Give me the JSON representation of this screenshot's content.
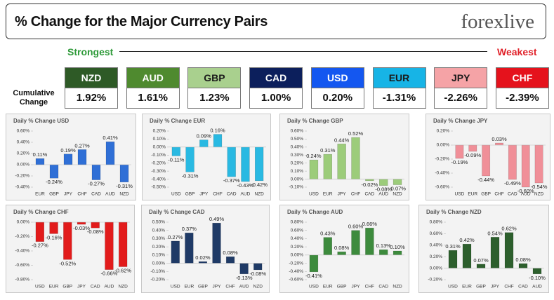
{
  "header": {
    "title": "% Change for the Major Currency Pairs",
    "logo": "forexlive"
  },
  "strength": {
    "strongest": "Strongest",
    "weakest": "Weakest",
    "row_label": "Cumulative Change",
    "currencies": [
      {
        "name": "NZD",
        "change": "1.92%",
        "color": "#2e5a26",
        "text_color": "#ffffff"
      },
      {
        "name": "AUD",
        "change": "1.61%",
        "color": "#4f8a2f",
        "text_color": "#ffffff"
      },
      {
        "name": "GBP",
        "change": "1.23%",
        "color": "#a9d08e",
        "text_color": "#1a1a1a"
      },
      {
        "name": "CAD",
        "change": "1.00%",
        "color": "#0c1f5c",
        "text_color": "#ffffff"
      },
      {
        "name": "USD",
        "change": "0.20%",
        "color": "#1457f0",
        "text_color": "#ffffff"
      },
      {
        "name": "EUR",
        "change": "-1.31%",
        "color": "#17b4e6",
        "text_color": "#1a1a1a"
      },
      {
        "name": "JPY",
        "change": "-2.26%",
        "color": "#f5a3a6",
        "text_color": "#1a1a1a"
      },
      {
        "name": "CHF",
        "change": "-2.39%",
        "color": "#e5121c",
        "text_color": "#ffffff"
      }
    ]
  },
  "chart_data": [
    {
      "type": "bar",
      "title": "Daily % Change USD",
      "color": "#2f6fd6",
      "categories": [
        "EUR",
        "GBP",
        "JPY",
        "CHF",
        "CAD",
        "AUD",
        "NZD"
      ],
      "values": [
        0.11,
        -0.24,
        0.19,
        0.27,
        -0.27,
        0.41,
        -0.31
      ],
      "value_labels": [
        "0.11%",
        "-0.24%",
        "0.19%",
        "0.27%",
        "-0.27%",
        "0.41%",
        "-0.31%"
      ],
      "ylim": [
        -0.4,
        0.6
      ],
      "yticks": [
        {
          "value": -0.4,
          "label": "-0.40%"
        },
        {
          "value": -0.2,
          "label": "-0.20%"
        },
        {
          "value": 0,
          "label": "0.00%"
        },
        {
          "value": 0.2,
          "label": "0.20%"
        },
        {
          "value": 0.4,
          "label": "0.40%"
        },
        {
          "value": 0.6,
          "label": "0.60%"
        }
      ]
    },
    {
      "type": "bar",
      "title": "Daily % Change EUR",
      "color": "#29b9e2",
      "categories": [
        "USD",
        "GBP",
        "JPY",
        "CHF",
        "CAD",
        "AUD",
        "NZD"
      ],
      "values": [
        -0.11,
        -0.31,
        0.09,
        0.16,
        -0.37,
        -0.43,
        -0.42
      ],
      "value_labels": [
        "-0.11%",
        "-0.31%",
        "0.09%",
        "0.16%",
        "-0.37%",
        "-0.43%",
        "-0.42%"
      ],
      "ylim": [
        -0.5,
        0.2
      ],
      "yticks": [
        {
          "value": -0.5,
          "label": "-0.50%"
        },
        {
          "value": -0.4,
          "label": "-0.40%"
        },
        {
          "value": -0.3,
          "label": "-0.30%"
        },
        {
          "value": -0.2,
          "label": "-0.20%"
        },
        {
          "value": -0.1,
          "label": "-0.10%"
        },
        {
          "value": 0,
          "label": "0.00%"
        },
        {
          "value": 0.1,
          "label": "0.10%"
        },
        {
          "value": 0.2,
          "label": "0.20%"
        }
      ]
    },
    {
      "type": "bar",
      "title": "Daily % Change GBP",
      "color": "#9ccc7a",
      "categories": [
        "USD",
        "EUR",
        "JPY",
        "CHF",
        "CAD",
        "AUD",
        "NZD"
      ],
      "values": [
        0.24,
        0.31,
        0.44,
        0.52,
        -0.02,
        -0.08,
        -0.07
      ],
      "value_labels": [
        "0.24%",
        "0.31%",
        "0.44%",
        "0.52%",
        "-0.02%",
        "-0.08%",
        "-0.07%"
      ],
      "ylim": [
        -0.1,
        0.6
      ],
      "yticks": [
        {
          "value": -0.1,
          "label": "-0.10%"
        },
        {
          "value": 0,
          "label": "0.00%"
        },
        {
          "value": 0.1,
          "label": "0.10%"
        },
        {
          "value": 0.2,
          "label": "0.20%"
        },
        {
          "value": 0.3,
          "label": "0.30%"
        },
        {
          "value": 0.4,
          "label": "0.40%"
        },
        {
          "value": 0.5,
          "label": "0.50%"
        },
        {
          "value": 0.6,
          "label": "0.60%"
        }
      ]
    },
    {
      "type": "bar",
      "title": "Daily % Change JPY",
      "color": "#f08f98",
      "categories": [
        "USD",
        "EUR",
        "GBP",
        "CHF",
        "CAD",
        "AUD",
        "NZD"
      ],
      "values": [
        -0.19,
        -0.09,
        -0.44,
        0.03,
        -0.49,
        -0.6,
        -0.54
      ],
      "value_labels": [
        "-0.19%",
        "-0.09%",
        "-0.44%",
        "0.03%",
        "-0.49%",
        "-0.60%",
        "-0.54%"
      ],
      "ylim": [
        -0.6,
        0.2
      ],
      "yticks": [
        {
          "value": -0.6,
          "label": "-0.60%"
        },
        {
          "value": -0.4,
          "label": "-0.40%"
        },
        {
          "value": -0.2,
          "label": "-0.20%"
        },
        {
          "value": 0,
          "label": "0.00%"
        },
        {
          "value": 0.2,
          "label": "0.20%"
        }
      ]
    },
    {
      "type": "bar",
      "title": "Daily % Change CHF",
      "color": "#e21b1b",
      "categories": [
        "USD",
        "EUR",
        "GBP",
        "JPY",
        "CAD",
        "AUD",
        "NZD"
      ],
      "values": [
        -0.27,
        -0.16,
        -0.52,
        -0.03,
        -0.08,
        -0.66,
        -0.62
      ],
      "value_labels": [
        "-0.27%",
        "-0.16%",
        "-0.52%",
        "-0.03%",
        "-0.08%",
        "-0.66%",
        "-0.62%"
      ],
      "ylim": [
        -0.8,
        0
      ],
      "yticks": [
        {
          "value": -0.8,
          "label": "-0.80%"
        },
        {
          "value": -0.6,
          "label": "-0.60%"
        },
        {
          "value": -0.4,
          "label": "-0.40%"
        },
        {
          "value": -0.2,
          "label": "-0.20%"
        },
        {
          "value": 0,
          "label": "0.00%"
        }
      ]
    },
    {
      "type": "bar",
      "title": "Daily % Change CAD",
      "color": "#1f3a66",
      "categories": [
        "USD",
        "EUR",
        "GBP",
        "JPY",
        "CHF",
        "AUD",
        "NZD"
      ],
      "values": [
        0.27,
        0.37,
        0.02,
        0.49,
        0.08,
        -0.13,
        -0.08
      ],
      "value_labels": [
        "0.27%",
        "0.37%",
        "0.02%",
        "0.49%",
        "0.08%",
        "-0.13%",
        "-0.08%"
      ],
      "ylim": [
        -0.2,
        0.5
      ],
      "yticks": [
        {
          "value": -0.2,
          "label": "-0.20%"
        },
        {
          "value": -0.1,
          "label": "-0.10%"
        },
        {
          "value": 0,
          "label": "0.00%"
        },
        {
          "value": 0.1,
          "label": "0.10%"
        },
        {
          "value": 0.2,
          "label": "0.20%"
        },
        {
          "value": 0.3,
          "label": "0.30%"
        },
        {
          "value": 0.4,
          "label": "0.40%"
        },
        {
          "value": 0.5,
          "label": "0.50%"
        }
      ]
    },
    {
      "type": "bar",
      "title": "Daily % Change AUD",
      "color": "#3d8b3d",
      "categories": [
        "USD",
        "EUR",
        "GBP",
        "JPY",
        "CHF",
        "CAD",
        "NZD"
      ],
      "values": [
        -0.41,
        0.43,
        0.08,
        0.6,
        0.66,
        0.13,
        0.1
      ],
      "value_labels": [
        "-0.41%",
        "0.43%",
        "0.08%",
        "0.60%",
        "0.66%",
        "0.13%",
        "0.10%"
      ],
      "ylim": [
        -0.6,
        0.8
      ],
      "yticks": [
        {
          "value": -0.6,
          "label": "-0.60%"
        },
        {
          "value": -0.4,
          "label": "-0.40%"
        },
        {
          "value": -0.2,
          "label": "-0.20%"
        },
        {
          "value": 0,
          "label": "0.00%"
        },
        {
          "value": 0.2,
          "label": "0.20%"
        },
        {
          "value": 0.4,
          "label": "0.40%"
        },
        {
          "value": 0.6,
          "label": "0.60%"
        },
        {
          "value": 0.8,
          "label": "0.80%"
        }
      ]
    },
    {
      "type": "bar",
      "title": "Daily % Change NZD",
      "color": "#2d5f2d",
      "categories": [
        "USD",
        "EUR",
        "GBP",
        "JPY",
        "CHF",
        "CAD",
        "AUD"
      ],
      "values": [
        0.31,
        0.42,
        0.07,
        0.54,
        0.62,
        0.08,
        -0.1
      ],
      "value_labels": [
        "0.31%",
        "0.42%",
        "0.07%",
        "0.54%",
        "0.62%",
        "0.08%",
        "-0.10%"
      ],
      "ylim": [
        -0.2,
        0.8
      ],
      "yticks": [
        {
          "value": -0.2,
          "label": "-0.20%"
        },
        {
          "value": 0,
          "label": "0.00%"
        },
        {
          "value": 0.2,
          "label": "0.20%"
        },
        {
          "value": 0.4,
          "label": "0.40%"
        },
        {
          "value": 0.6,
          "label": "0.60%"
        },
        {
          "value": 0.8,
          "label": "0.80%"
        }
      ]
    }
  ]
}
